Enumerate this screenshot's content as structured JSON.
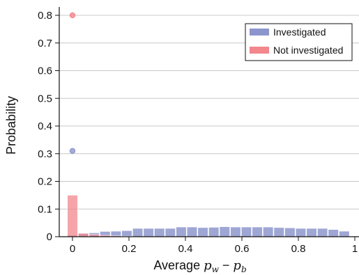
{
  "chart_data": {
    "type": "bar",
    "xlabel": {
      "prefix": "Average ",
      "var1": "p",
      "sub1": "w",
      "op": " − ",
      "var2": "p",
      "sub2": "b"
    },
    "ylabel": "Probability",
    "xlim": [
      -0.08,
      1.02
    ],
    "ylim": [
      0,
      0.84
    ],
    "x_ticks": [
      0,
      0.2,
      0.4,
      0.6,
      0.8,
      1
    ],
    "x_tick_labels": [
      "0",
      "0.2",
      "0.4",
      "0.6",
      "0.8",
      "1"
    ],
    "y_ticks": [
      0,
      0.1,
      0.2,
      0.3,
      0.4,
      0.5,
      0.6,
      0.7,
      0.8
    ],
    "y_tick_labels": [
      "0",
      "0.1",
      "0.2",
      "0.3",
      "0.4",
      "0.5",
      "0.6",
      "0.7",
      "0.8"
    ],
    "grid": "horizontal",
    "legend_position": "top-right",
    "bin_width": 0.0385,
    "series": [
      {
        "name": "Investigated",
        "color": "#8d96cc",
        "point_at_zero": 0.31,
        "bins": [
          {
            "x": 0.0,
            "y": 0.005
          },
          {
            "x": 0.0385,
            "y": 0.012
          },
          {
            "x": 0.077,
            "y": 0.014
          },
          {
            "x": 0.1155,
            "y": 0.019
          },
          {
            "x": 0.154,
            "y": 0.02
          },
          {
            "x": 0.1925,
            "y": 0.022
          },
          {
            "x": 0.231,
            "y": 0.03
          },
          {
            "x": 0.2695,
            "y": 0.03
          },
          {
            "x": 0.308,
            "y": 0.03
          },
          {
            "x": 0.3465,
            "y": 0.03
          },
          {
            "x": 0.385,
            "y": 0.035
          },
          {
            "x": 0.4235,
            "y": 0.035
          },
          {
            "x": 0.462,
            "y": 0.033
          },
          {
            "x": 0.5005,
            "y": 0.034
          },
          {
            "x": 0.539,
            "y": 0.036
          },
          {
            "x": 0.5775,
            "y": 0.035
          },
          {
            "x": 0.616,
            "y": 0.035
          },
          {
            "x": 0.6545,
            "y": 0.035
          },
          {
            "x": 0.693,
            "y": 0.035
          },
          {
            "x": 0.7315,
            "y": 0.033
          },
          {
            "x": 0.77,
            "y": 0.032
          },
          {
            "x": 0.8085,
            "y": 0.03
          },
          {
            "x": 0.847,
            "y": 0.03
          },
          {
            "x": 0.8855,
            "y": 0.03
          },
          {
            "x": 0.924,
            "y": 0.026
          },
          {
            "x": 0.9625,
            "y": 0.02
          }
        ]
      },
      {
        "name": "Not investigated",
        "color": "#f2878c",
        "point_at_zero": 0.8,
        "bins": [
          {
            "x": 0.0,
            "y": 0.15
          },
          {
            "x": 0.0385,
            "y": 0.012
          },
          {
            "x": 0.077,
            "y": 0.008
          },
          {
            "x": 0.1155,
            "y": 0.005
          },
          {
            "x": 0.154,
            "y": 0.003
          },
          {
            "x": 0.1925,
            "y": 0.002
          }
        ]
      }
    ]
  }
}
